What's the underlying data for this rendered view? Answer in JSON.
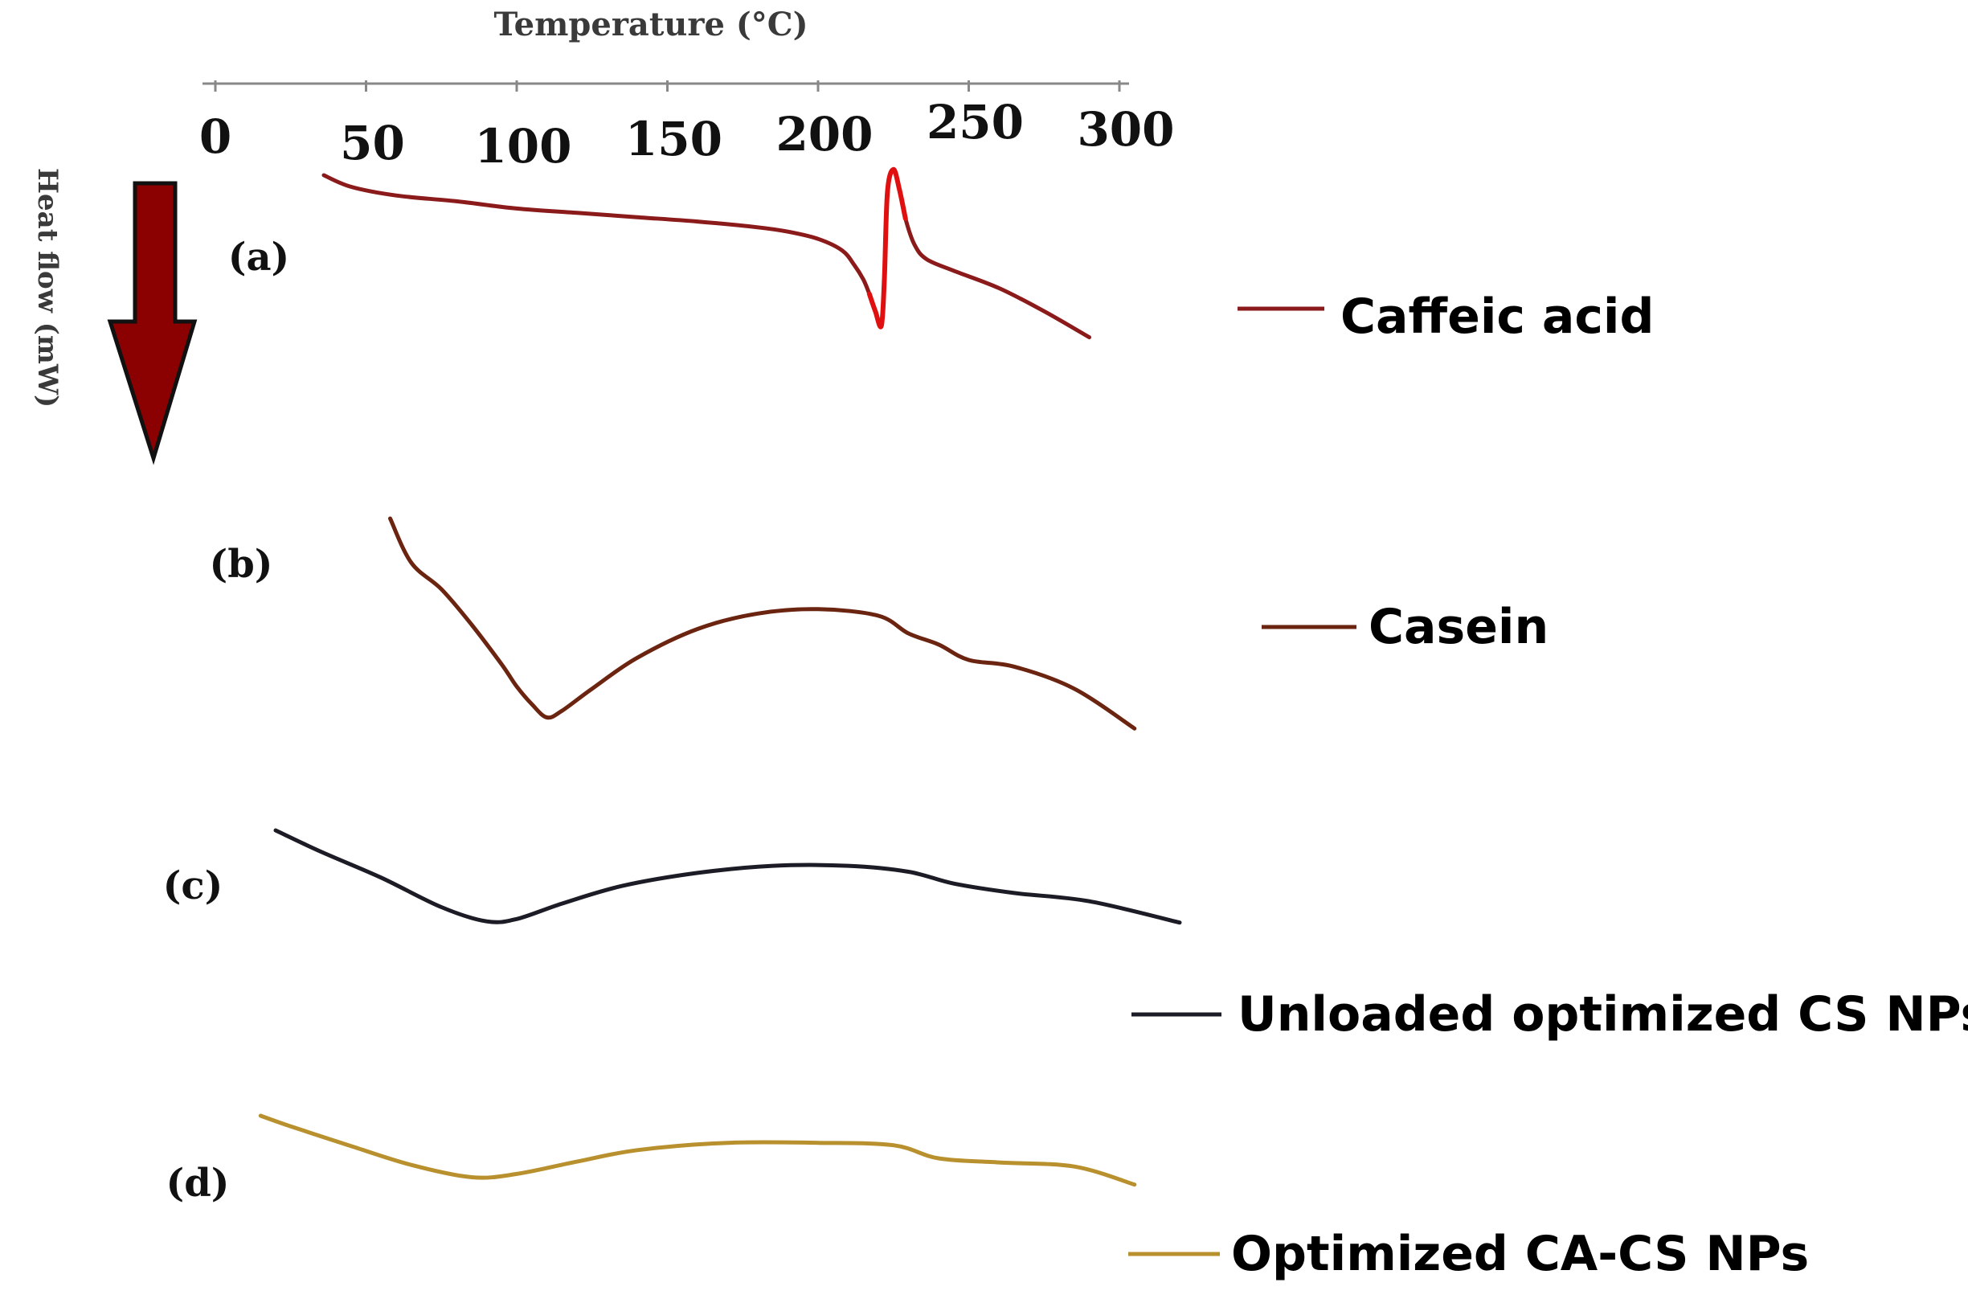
{
  "chart_data": {
    "type": "line",
    "title": "",
    "xlabel": "Temperature (°C)",
    "ylabel": "Heat flow (mW)",
    "x_ticks": [
      "0",
      "50",
      "100",
      "150",
      "200",
      "250",
      "300"
    ],
    "xlim": [
      0,
      300
    ],
    "ylim": [
      0,
      1
    ],
    "grid": false,
    "legend": "right",
    "y_arrow": "down",
    "series": [
      {
        "name": "Caffeic acid",
        "panel": "(a)",
        "color": "#8b1a1a",
        "peak_color": "#e01010",
        "x": [
          36,
          45,
          60,
          80,
          100,
          120,
          140,
          160,
          180,
          190,
          200,
          208,
          212,
          215,
          217,
          219,
          221,
          222,
          223,
          225,
          227,
          229,
          232,
          236,
          245,
          260,
          275,
          290
        ],
        "y": [
          0.0,
          0.04,
          0.07,
          0.09,
          0.115,
          0.13,
          0.145,
          0.16,
          0.18,
          0.195,
          0.22,
          0.26,
          0.31,
          0.36,
          0.41,
          0.47,
          0.52,
          0.36,
          0.06,
          -0.02,
          0.05,
          0.15,
          0.24,
          0.29,
          0.33,
          0.39,
          0.47,
          0.56
        ]
      },
      {
        "name": "Casein",
        "panel": "(b)",
        "color": "#6b2410",
        "x": [
          58,
          65,
          75,
          85,
          95,
          100,
          105,
          110,
          115,
          125,
          140,
          160,
          180,
          200,
          220,
          230,
          240,
          250,
          265,
          285,
          305
        ],
        "y": [
          0.0,
          0.2,
          0.32,
          0.48,
          0.66,
          0.76,
          0.84,
          0.9,
          0.87,
          0.77,
          0.63,
          0.5,
          0.43,
          0.41,
          0.44,
          0.52,
          0.57,
          0.64,
          0.67,
          0.77,
          0.95
        ]
      },
      {
        "name": "Unloaded optimized CS NPs",
        "panel": "(c)",
        "color": "#1c1c26",
        "x": [
          20,
          35,
          55,
          75,
          90,
          100,
          115,
          135,
          160,
          185,
          210,
          230,
          245,
          265,
          290,
          320
        ],
        "y": [
          0.0,
          0.18,
          0.4,
          0.65,
          0.77,
          0.75,
          0.62,
          0.47,
          0.36,
          0.3,
          0.3,
          0.35,
          0.45,
          0.53,
          0.6,
          0.78
        ]
      },
      {
        "name": "Optimized CA-CS NPs",
        "panel": "(d)",
        "color": "#b8902e",
        "x": [
          15,
          25,
          45,
          65,
          85,
          100,
          120,
          140,
          170,
          200,
          225,
          240,
          260,
          285,
          305
        ],
        "y": [
          0.0,
          0.13,
          0.37,
          0.6,
          0.75,
          0.71,
          0.56,
          0.42,
          0.33,
          0.33,
          0.36,
          0.52,
          0.57,
          0.62,
          0.84
        ]
      }
    ]
  }
}
